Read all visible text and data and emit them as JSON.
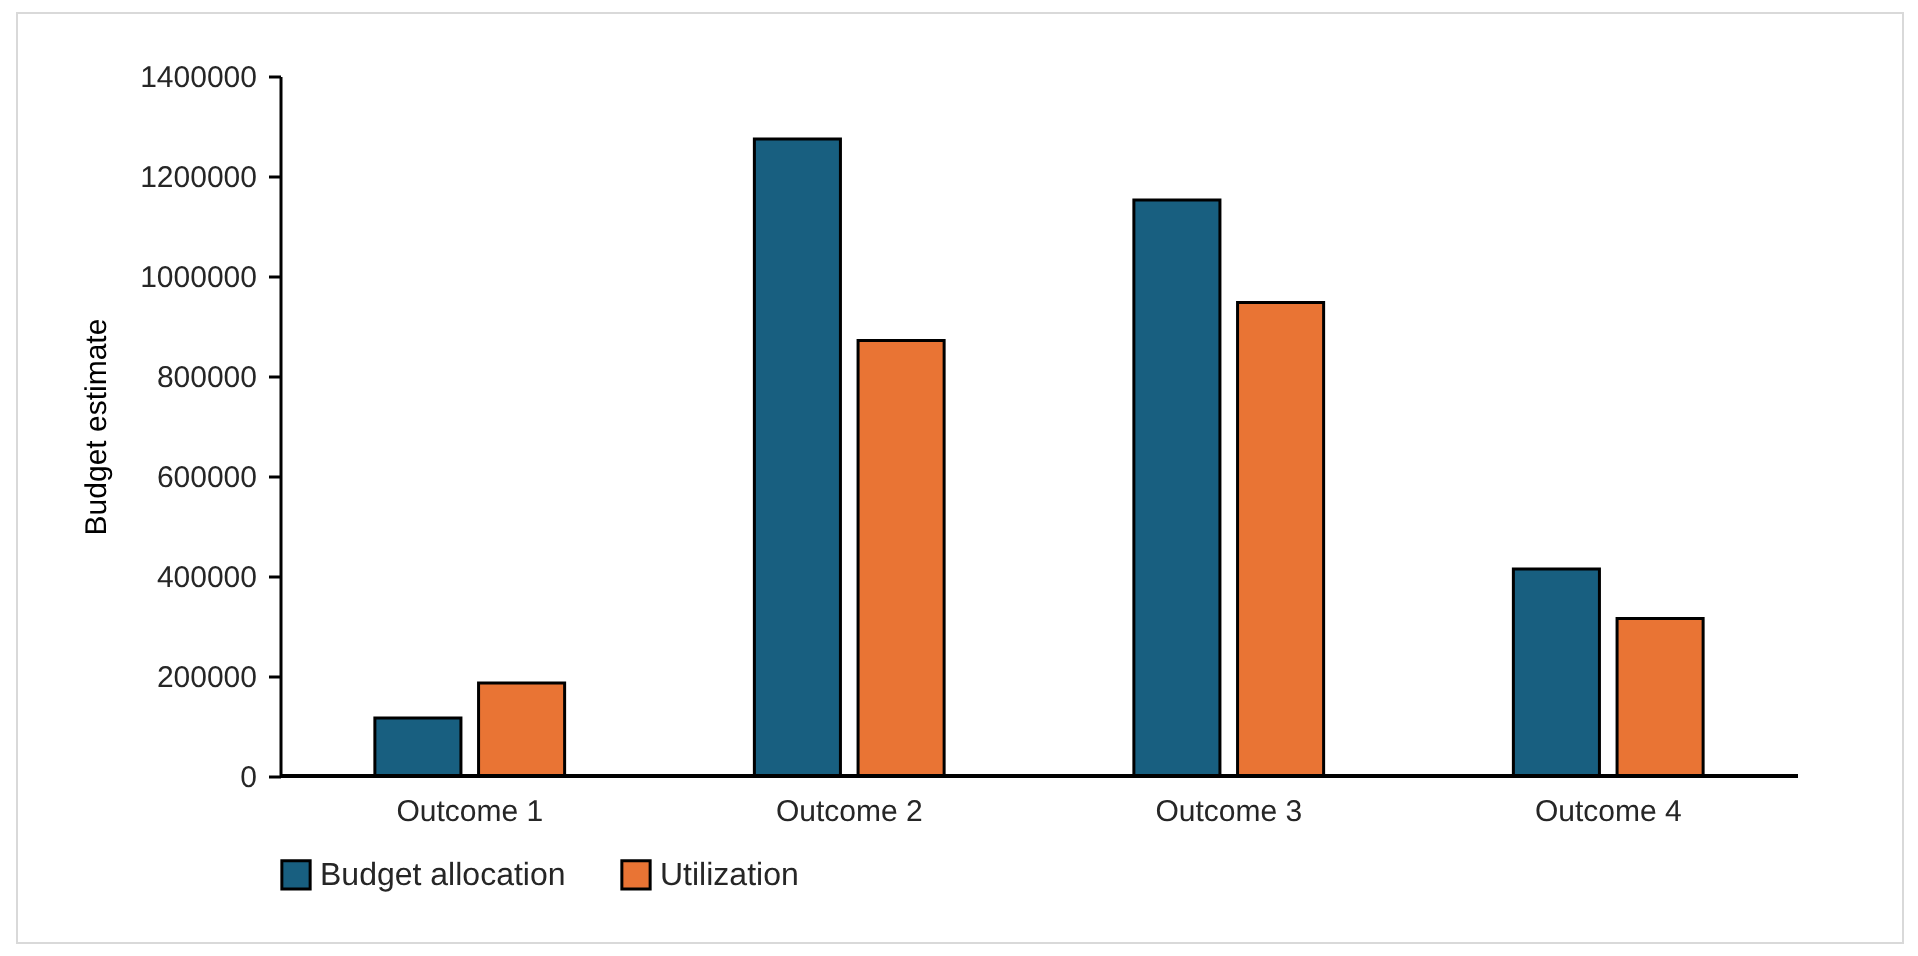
{
  "chart_data": {
    "type": "bar",
    "ylabel": "Budget estimate",
    "categories": [
      "Outcome 1",
      "Outcome 2",
      "Outcome 3",
      "Outcome 4"
    ],
    "series": [
      {
        "name": "Budget allocation",
        "color": "#185f80",
        "values": [
          116000,
          1274000,
          1152000,
          414000
        ]
      },
      {
        "name": "Utilization",
        "color": "#e97434",
        "values": [
          186000,
          871000,
          947000,
          315000
        ]
      }
    ],
    "ylim": [
      0,
      1400000
    ],
    "yticks": [
      0,
      200000,
      400000,
      600000,
      800000,
      1000000,
      1200000,
      1400000
    ],
    "grid": false,
    "legend": "bottom"
  }
}
